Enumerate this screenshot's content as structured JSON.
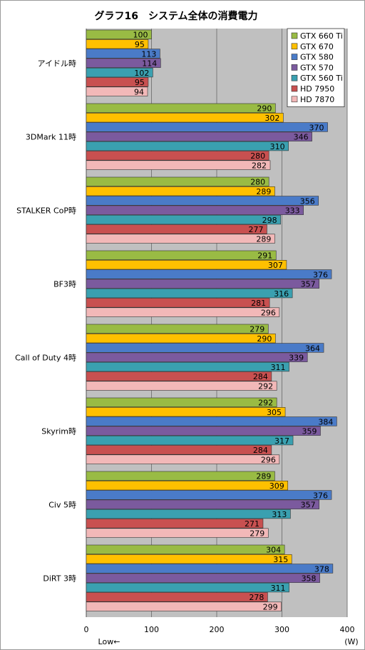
{
  "chart_data": {
    "type": "bar",
    "orientation": "horizontal",
    "title": "グラフ16　システム全体の消費電力",
    "xlabel": "",
    "unit_label": "(W)",
    "low_label": "Low←",
    "xlim": [
      0,
      400
    ],
    "xticks": [
      0,
      100,
      200,
      300,
      400
    ],
    "grid": true,
    "legend_position": "top-right",
    "categories": [
      "アイドル時",
      "3DMark 11時",
      "STALKER  CoP時",
      "BF3時",
      "Call of Duty 4時",
      "Skyrim時",
      "Civ 5時",
      "DiRT 3時"
    ],
    "series": [
      {
        "name": "GTX 660 Ti",
        "color": "#99bb44",
        "values": [
          100,
          290,
          280,
          291,
          279,
          292,
          289,
          304
        ]
      },
      {
        "name": "GTX 670",
        "color": "#ffc000",
        "values": [
          95,
          302,
          289,
          307,
          290,
          305,
          309,
          315
        ]
      },
      {
        "name": "GTX 580",
        "color": "#4a7bc8",
        "values": [
          113,
          370,
          356,
          376,
          364,
          384,
          376,
          378
        ]
      },
      {
        "name": "GTX 570",
        "color": "#7b5a9e",
        "values": [
          114,
          346,
          333,
          357,
          339,
          359,
          357,
          358
        ]
      },
      {
        "name": "GTX 560 Ti",
        "color": "#3aa0b0",
        "values": [
          102,
          310,
          298,
          316,
          311,
          317,
          313,
          311
        ]
      },
      {
        "name": "HD 7950",
        "color": "#c85050",
        "values": [
          95,
          280,
          277,
          281,
          284,
          284,
          271,
          278
        ]
      },
      {
        "name": "HD 7870",
        "color": "#f2b8b8",
        "values": [
          94,
          282,
          289,
          296,
          292,
          296,
          279,
          299
        ]
      }
    ]
  }
}
